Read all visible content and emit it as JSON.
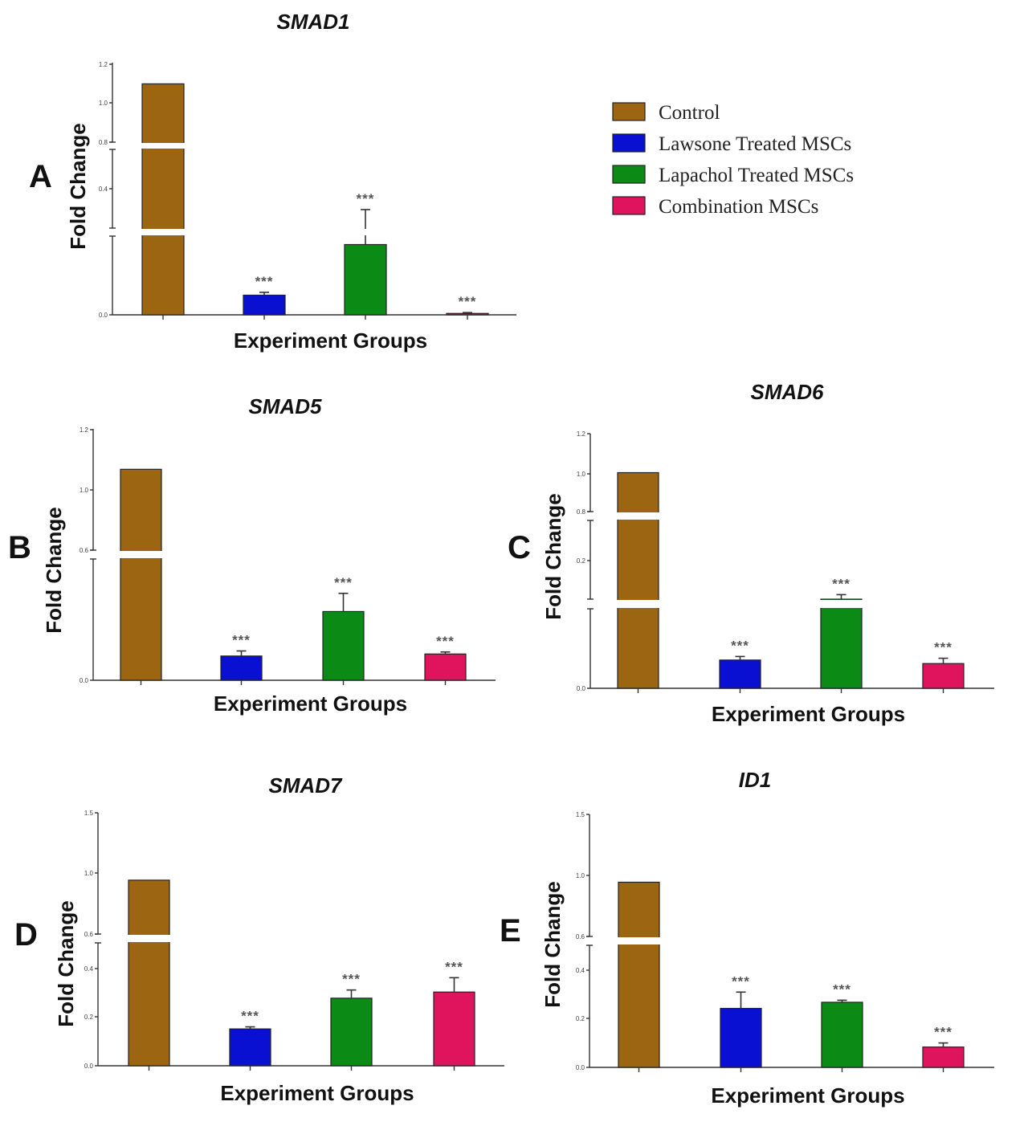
{
  "legend": {
    "items": [
      {
        "label": "Control",
        "color": "#9b6511"
      },
      {
        "label": "Lawsone Treated MSCs",
        "color": "#0a10d2"
      },
      {
        "label": "Lapachol Treated MSCs",
        "color": "#0b8a16"
      },
      {
        "label": "Combination MSCs",
        "color": "#e0145c"
      }
    ]
  },
  "chart_data": [
    {
      "panel": "A",
      "type": "bar",
      "title": "SMAD1",
      "xlabel": "Experiment Groups",
      "ylabel": "Fold Change",
      "categories": [
        "Control",
        "Lawsone Treated MSCs",
        "Lapachol Treated MSCs",
        "Combination MSCs"
      ],
      "values": [
        1.0,
        0.07,
        0.25,
        0.005
      ],
      "errors": [
        0.0,
        0.01,
        0.07,
        0.003
      ],
      "significance": [
        "",
        "***",
        "***",
        "***"
      ],
      "y_ticks": [
        "0.0",
        "0.4",
        "0.8",
        "1.0",
        "1.2"
      ],
      "axis_break": true
    },
    {
      "panel": "B",
      "type": "bar",
      "title": "SMAD5",
      "xlabel": "Experiment Groups",
      "ylabel": "Fold Change",
      "categories": [
        "Control",
        "Lawsone Treated MSCs",
        "Lapachol Treated MSCs",
        "Combination MSCs"
      ],
      "values": [
        1.0,
        0.12,
        0.34,
        0.13
      ],
      "errors": [
        0.0,
        0.025,
        0.09,
        0.01
      ],
      "significance": [
        "",
        "***",
        "***",
        "***"
      ],
      "y_ticks": [
        "0.0",
        "0.6",
        "1.0",
        "1.2"
      ],
      "axis_break": true
    },
    {
      "panel": "C",
      "type": "bar",
      "title": "SMAD6",
      "xlabel": "Experiment Groups",
      "ylabel": "Fold Change",
      "categories": [
        "Control",
        "Lawsone Treated MSCs",
        "Lapachol Treated MSCs",
        "Combination MSCs"
      ],
      "values": [
        1.0,
        0.16,
        0.45,
        0.14
      ],
      "errors": [
        0.0,
        0.02,
        0.02,
        0.03
      ],
      "significance": [
        "",
        "***",
        "***",
        "***"
      ],
      "y_ticks": [
        "0.0",
        "0.2",
        "0.8",
        "1.0",
        "1.2"
      ],
      "axis_break": true
    },
    {
      "panel": "D",
      "type": "bar",
      "title": "SMAD7",
      "xlabel": "Experiment Groups",
      "ylabel": "Fold Change",
      "categories": [
        "Control",
        "Lawsone Treated MSCs",
        "Lapachol Treated MSCs",
        "Combination MSCs"
      ],
      "values": [
        1.0,
        0.18,
        0.33,
        0.36
      ],
      "errors": [
        0.0,
        0.01,
        0.04,
        0.07
      ],
      "significance": [
        "",
        "***",
        "***",
        "***"
      ],
      "y_ticks": [
        "0.0",
        "0.2",
        "0.4",
        "0.6",
        "1.0",
        "1.5"
      ],
      "axis_break": true
    },
    {
      "panel": "E",
      "type": "bar",
      "title": "ID1",
      "xlabel": "Experiment Groups",
      "ylabel": "Fold Change",
      "categories": [
        "Control",
        "Lawsone Treated MSCs",
        "Lapachol Treated MSCs",
        "Combination MSCs"
      ],
      "values": [
        1.0,
        0.29,
        0.32,
        0.1
      ],
      "errors": [
        0.0,
        0.08,
        0.01,
        0.02
      ],
      "significance": [
        "",
        "***",
        "***",
        "***"
      ],
      "y_ticks": [
        "0.0",
        "0.2",
        "0.4",
        "0.6",
        "1.0",
        "1.5"
      ],
      "axis_break": true
    }
  ]
}
